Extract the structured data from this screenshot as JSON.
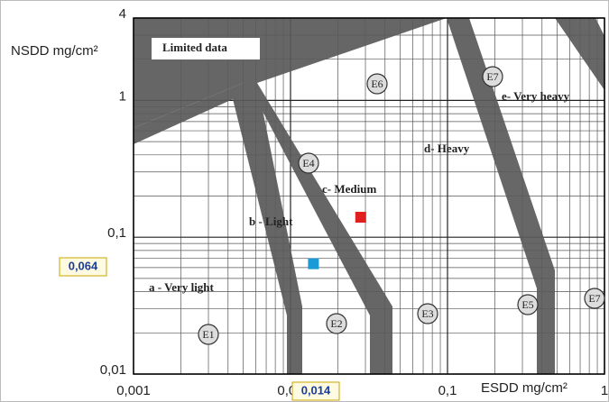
{
  "chart_data": {
    "type": "scatter",
    "x_label": "ESDD mg/cm²",
    "y_label": "NSDD mg/cm²",
    "xlim": [
      0.001,
      1
    ],
    "ylim": [
      0.01,
      4
    ],
    "log_x": true,
    "log_y": true,
    "grid": true,
    "xticks": [
      {
        "value": 0.001,
        "label": "0,001"
      },
      {
        "value": 0.01,
        "label": "0,01"
      },
      {
        "value": 0.1,
        "label": "0,1"
      },
      1
    ],
    "yticks": [
      {
        "value": 0.01,
        "label": "0,01"
      },
      {
        "value": 0.1,
        "label": "0,1"
      },
      1,
      4
    ],
    "series": [
      {
        "color": "#1a9ad6",
        "x": [
          0.014
        ],
        "values": [
          0.064
        ]
      },
      {
        "color": "#e02020",
        "x": [
          0.028
        ],
        "values": [
          0.14
        ]
      }
    ],
    "highlight_labels": [
      "0,064",
      "0,014"
    ],
    "region_labels": [
      "Limited data",
      "a - Very light",
      "b - Light",
      "c- Medium",
      "d- Heavy",
      "e- Very heavy"
    ],
    "markers": [
      "E1",
      "E2",
      "E3",
      "E4",
      "E5",
      "E6",
      "E7",
      "E7"
    ]
  }
}
